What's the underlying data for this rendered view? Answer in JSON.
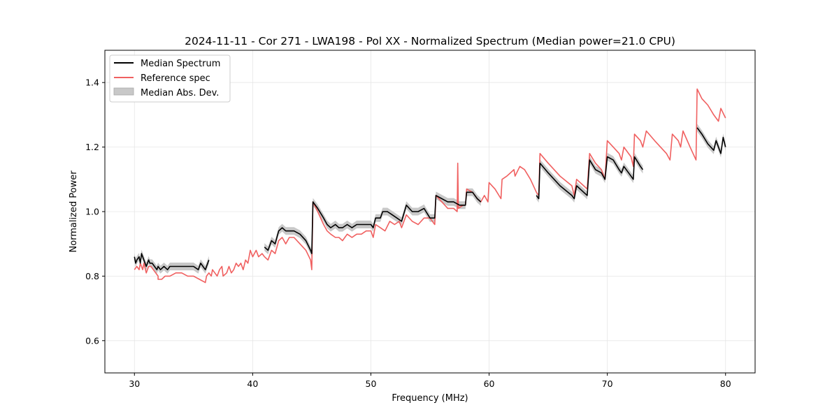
{
  "chart_data": {
    "type": "line",
    "title": "2024-11-11 - Cor 271 - LWA198 - Pol XX - Normalized Spectrum (Median power=21.0 CPU)",
    "xlabel": "Frequency (MHz)",
    "ylabel": "Normalized Power",
    "xlim": [
      27.5,
      82.5
    ],
    "ylim": [
      0.5,
      1.5
    ],
    "xticks": [
      30,
      40,
      50,
      60,
      70,
      80
    ],
    "yticks": [
      0.6,
      0.8,
      1.0,
      1.2,
      1.4
    ],
    "xtick_labels": [
      "30",
      "40",
      "50",
      "60",
      "70",
      "80"
    ],
    "ytick_labels": [
      "0.6",
      "0.8",
      "1.0",
      "1.2",
      "1.4"
    ],
    "grid": true,
    "legend_position": "top-left",
    "legend": [
      "Median Spectrum",
      "Reference spec",
      "Median Abs. Dev."
    ],
    "colors": {
      "median": "#000000",
      "reference": "#f06060",
      "mad_fill": "#c8c8c8",
      "grid": "#e6e6e6"
    },
    "series": [
      {
        "name": "Reference spec",
        "segments": [
          [
            [
              30.0,
              0.82
            ],
            [
              30.2,
              0.83
            ],
            [
              30.4,
              0.82
            ],
            [
              30.5,
              0.84
            ],
            [
              30.7,
              0.82
            ],
            [
              30.8,
              0.84
            ],
            [
              31.0,
              0.81
            ],
            [
              31.2,
              0.83
            ],
            [
              31.4,
              0.83
            ],
            [
              31.6,
              0.82
            ],
            [
              31.8,
              0.81
            ],
            [
              32.0,
              0.8
            ],
            [
              32.0,
              0.79
            ],
            [
              32.3,
              0.79
            ],
            [
              32.6,
              0.8
            ],
            [
              33.0,
              0.8
            ],
            [
              33.5,
              0.81
            ],
            [
              34.0,
              0.81
            ],
            [
              34.5,
              0.8
            ],
            [
              35.0,
              0.8
            ],
            [
              35.5,
              0.79
            ],
            [
              36.0,
              0.78
            ],
            [
              36.1,
              0.8
            ],
            [
              36.3,
              0.81
            ],
            [
              36.5,
              0.8
            ],
            [
              36.6,
              0.82
            ],
            [
              36.8,
              0.81
            ],
            [
              37.0,
              0.8
            ],
            [
              37.2,
              0.82
            ],
            [
              37.4,
              0.83
            ],
            [
              37.5,
              0.8
            ],
            [
              37.8,
              0.81
            ],
            [
              38.0,
              0.83
            ],
            [
              38.2,
              0.81
            ],
            [
              38.4,
              0.82
            ],
            [
              38.6,
              0.84
            ],
            [
              38.8,
              0.83
            ],
            [
              39.0,
              0.84
            ],
            [
              39.2,
              0.82
            ],
            [
              39.4,
              0.85
            ],
            [
              39.6,
              0.84
            ],
            [
              39.8,
              0.88
            ],
            [
              40.0,
              0.86
            ],
            [
              40.3,
              0.88
            ],
            [
              40.5,
              0.86
            ],
            [
              40.8,
              0.87
            ],
            [
              41.0,
              0.86
            ],
            [
              41.3,
              0.85
            ],
            [
              41.6,
              0.88
            ],
            [
              41.9,
              0.87
            ],
            [
              42.2,
              0.91
            ],
            [
              42.5,
              0.92
            ],
            [
              42.8,
              0.9
            ],
            [
              43.1,
              0.92
            ],
            [
              43.5,
              0.92
            ],
            [
              44.0,
              0.9
            ],
            [
              44.5,
              0.88
            ],
            [
              44.9,
              0.85
            ],
            [
              45.0,
              0.82
            ],
            [
              45.1,
              1.03
            ],
            [
              45.5,
              1.0
            ],
            [
              46.0,
              0.96
            ],
            [
              46.3,
              0.94
            ],
            [
              46.6,
              0.93
            ],
            [
              47.0,
              0.92
            ],
            [
              47.3,
              0.92
            ],
            [
              47.6,
              0.91
            ],
            [
              48.0,
              0.93
            ],
            [
              48.4,
              0.92
            ],
            [
              48.8,
              0.93
            ],
            [
              49.2,
              0.93
            ],
            [
              49.6,
              0.94
            ],
            [
              50.0,
              0.94
            ],
            [
              50.2,
              0.92
            ],
            [
              50.4,
              0.96
            ],
            [
              50.8,
              0.95
            ],
            [
              51.2,
              0.94
            ],
            [
              51.6,
              0.97
            ],
            [
              52.0,
              0.96
            ],
            [
              52.4,
              0.97
            ],
            [
              52.6,
              0.95
            ],
            [
              53.0,
              0.99
            ],
            [
              53.5,
              0.97
            ],
            [
              54.0,
              0.96
            ],
            [
              54.5,
              0.98
            ],
            [
              55.0,
              0.98
            ],
            [
              55.4,
              0.96
            ],
            [
              55.5,
              1.05
            ],
            [
              56.0,
              1.03
            ],
            [
              56.5,
              1.01
            ],
            [
              57.0,
              1.01
            ],
            [
              57.3,
              1.0
            ],
            [
              57.35,
              1.15
            ],
            [
              57.4,
              1.01
            ],
            [
              57.8,
              1.02
            ],
            [
              58.0,
              1.02
            ],
            [
              58.1,
              1.07
            ],
            [
              58.6,
              1.06
            ],
            [
              59.0,
              1.04
            ],
            [
              59.3,
              1.03
            ],
            [
              59.6,
              1.05
            ],
            [
              59.9,
              1.03
            ],
            [
              60.0,
              1.09
            ],
            [
              60.5,
              1.07
            ],
            [
              61.0,
              1.04
            ],
            [
              61.1,
              1.1
            ],
            [
              61.5,
              1.11
            ],
            [
              61.8,
              1.12
            ],
            [
              62.1,
              1.13
            ],
            [
              62.2,
              1.11
            ],
            [
              62.6,
              1.14
            ],
            [
              63.0,
              1.13
            ],
            [
              63.5,
              1.1
            ],
            [
              64.0,
              1.06
            ],
            [
              64.2,
              1.05
            ],
            [
              64.3,
              1.18
            ],
            [
              65.0,
              1.15
            ],
            [
              66.0,
              1.11
            ],
            [
              67.0,
              1.08
            ],
            [
              67.2,
              1.05
            ],
            [
              67.4,
              1.1
            ],
            [
              68.0,
              1.08
            ],
            [
              68.3,
              1.07
            ],
            [
              68.5,
              1.18
            ],
            [
              69.0,
              1.15
            ],
            [
              69.5,
              1.13
            ],
            [
              69.8,
              1.1
            ],
            [
              70.0,
              1.22
            ],
            [
              70.5,
              1.2
            ],
            [
              71.0,
              1.18
            ],
            [
              71.2,
              1.16
            ],
            [
              71.4,
              1.2
            ],
            [
              72.0,
              1.17
            ],
            [
              72.2,
              1.14
            ],
            [
              72.3,
              1.24
            ],
            [
              72.8,
              1.22
            ],
            [
              73.0,
              1.2
            ],
            [
              73.3,
              1.25
            ],
            [
              74.0,
              1.22
            ],
            [
              75.0,
              1.18
            ],
            [
              75.3,
              1.16
            ],
            [
              75.5,
              1.24
            ],
            [
              76.0,
              1.22
            ],
            [
              76.2,
              1.2
            ],
            [
              76.4,
              1.25
            ],
            [
              77.0,
              1.2
            ],
            [
              77.5,
              1.16
            ],
            [
              77.6,
              1.38
            ],
            [
              78.0,
              1.35
            ],
            [
              78.5,
              1.33
            ],
            [
              79.0,
              1.3
            ],
            [
              79.4,
              1.28
            ],
            [
              79.6,
              1.32
            ],
            [
              80.0,
              1.29
            ]
          ]
        ]
      },
      {
        "name": "Median Spectrum",
        "segments": [
          [
            [
              30.0,
              0.86
            ],
            [
              30.1,
              0.84
            ],
            [
              30.2,
              0.85
            ],
            [
              30.4,
              0.86
            ],
            [
              30.5,
              0.84
            ],
            [
              30.6,
              0.87
            ],
            [
              30.8,
              0.85
            ],
            [
              31.0,
              0.83
            ],
            [
              31.2,
              0.85
            ],
            [
              31.3,
              0.84
            ],
            [
              31.5,
              0.84
            ],
            [
              31.7,
              0.83
            ],
            [
              31.9,
              0.82
            ],
            [
              32.0,
              0.83
            ],
            [
              32.2,
              0.82
            ],
            [
              32.5,
              0.83
            ],
            [
              32.8,
              0.82
            ],
            [
              33.0,
              0.83
            ],
            [
              33.5,
              0.83
            ],
            [
              34.0,
              0.83
            ],
            [
              34.5,
              0.83
            ],
            [
              35.0,
              0.83
            ],
            [
              35.4,
              0.82
            ],
            [
              35.6,
              0.84
            ],
            [
              35.8,
              0.83
            ],
            [
              36.0,
              0.82
            ],
            [
              36.2,
              0.84
            ],
            [
              36.3,
              0.85
            ]
          ],
          [
            [
              41.0,
              0.89
            ],
            [
              41.3,
              0.88
            ],
            [
              41.6,
              0.91
            ],
            [
              41.9,
              0.9
            ],
            [
              42.2,
              0.94
            ],
            [
              42.5,
              0.95
            ],
            [
              42.8,
              0.94
            ],
            [
              43.1,
              0.94
            ],
            [
              43.5,
              0.94
            ],
            [
              44.0,
              0.93
            ],
            [
              44.5,
              0.91
            ],
            [
              44.9,
              0.88
            ],
            [
              45.0,
              0.87
            ],
            [
              45.1,
              1.03
            ],
            [
              45.5,
              1.01
            ],
            [
              46.0,
              0.98
            ],
            [
              46.3,
              0.96
            ],
            [
              46.6,
              0.95
            ],
            [
              47.0,
              0.96
            ],
            [
              47.3,
              0.95
            ],
            [
              47.6,
              0.95
            ],
            [
              48.0,
              0.96
            ],
            [
              48.4,
              0.95
            ],
            [
              48.8,
              0.96
            ],
            [
              49.2,
              0.96
            ],
            [
              49.6,
              0.96
            ],
            [
              50.0,
              0.96
            ],
            [
              50.2,
              0.95
            ],
            [
              50.4,
              0.98
            ],
            [
              50.8,
              0.98
            ],
            [
              51.0,
              1.0
            ],
            [
              51.4,
              1.0
            ],
            [
              51.8,
              0.99
            ],
            [
              52.2,
              0.98
            ],
            [
              52.6,
              0.97
            ],
            [
              53.0,
              1.02
            ],
            [
              53.5,
              1.0
            ],
            [
              54.0,
              1.0
            ],
            [
              54.5,
              1.01
            ],
            [
              55.0,
              0.98
            ],
            [
              55.4,
              0.98
            ],
            [
              55.5,
              1.05
            ],
            [
              56.0,
              1.04
            ],
            [
              56.5,
              1.03
            ],
            [
              57.0,
              1.03
            ],
            [
              57.5,
              1.02
            ],
            [
              58.0,
              1.02
            ],
            [
              58.1,
              1.06
            ],
            [
              58.6,
              1.06
            ],
            [
              59.0,
              1.04
            ],
            [
              59.3,
              1.03
            ]
          ],
          [
            [
              64.0,
              1.05
            ],
            [
              64.2,
              1.04
            ],
            [
              64.3,
              1.15
            ],
            [
              65.0,
              1.12
            ],
            [
              66.0,
              1.08
            ],
            [
              67.0,
              1.05
            ],
            [
              67.2,
              1.04
            ],
            [
              67.4,
              1.08
            ],
            [
              68.0,
              1.06
            ],
            [
              68.3,
              1.05
            ],
            [
              68.5,
              1.16
            ],
            [
              69.0,
              1.13
            ],
            [
              69.5,
              1.12
            ],
            [
              69.8,
              1.1
            ],
            [
              70.0,
              1.17
            ],
            [
              70.5,
              1.16
            ],
            [
              71.0,
              1.13
            ],
            [
              71.2,
              1.12
            ],
            [
              71.4,
              1.14
            ],
            [
              72.0,
              1.11
            ],
            [
              72.2,
              1.1
            ],
            [
              72.3,
              1.17
            ],
            [
              72.8,
              1.14
            ],
            [
              73.0,
              1.13
            ]
          ],
          [
            [
              77.6,
              1.26
            ],
            [
              78.0,
              1.24
            ],
            [
              78.5,
              1.21
            ],
            [
              79.0,
              1.19
            ],
            [
              79.2,
              1.22
            ],
            [
              79.6,
              1.18
            ],
            [
              79.8,
              1.23
            ],
            [
              80.0,
              1.2
            ]
          ]
        ]
      }
    ],
    "mad_band_halfwidth": 0.012
  }
}
